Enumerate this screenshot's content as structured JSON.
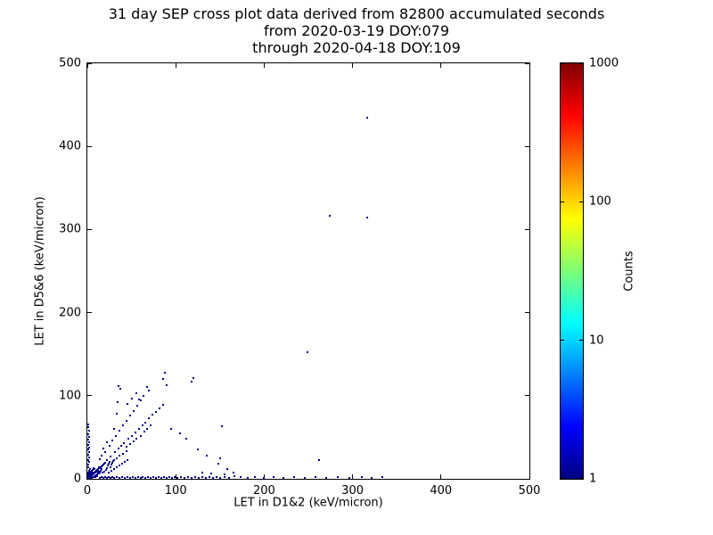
{
  "chart_data": {
    "type": "scatter",
    "title_lines": [
      "31 day SEP cross plot data derived from 82800 accumulated seconds",
      "from 2020-03-19 DOY:079",
      "through 2020-04-18 DOY:109"
    ],
    "xlabel": "LET in D1&2 (keV/micron)",
    "ylabel": "LET in D5&6 (keV/micron)",
    "xlim": [
      0,
      500
    ],
    "ylim": [
      0,
      500
    ],
    "x_ticks": [
      0,
      100,
      200,
      300,
      400,
      500
    ],
    "y_ticks": [
      0,
      100,
      200,
      300,
      400,
      500
    ],
    "grid": false,
    "point_color": "#000089",
    "colorbar": {
      "label": "Counts",
      "scale": "log",
      "min": 1,
      "max": 1000,
      "ticks": [
        1,
        10,
        100,
        1000
      ],
      "colormap": "jet"
    },
    "points": [
      [
        1,
        1
      ],
      [
        1,
        2
      ],
      [
        2,
        1
      ],
      [
        2,
        2
      ],
      [
        2,
        3
      ],
      [
        3,
        2
      ],
      [
        3,
        3
      ],
      [
        3,
        5
      ],
      [
        4,
        3
      ],
      [
        4,
        4
      ],
      [
        4,
        6
      ],
      [
        5,
        4
      ],
      [
        5,
        5
      ],
      [
        5,
        7
      ],
      [
        6,
        5
      ],
      [
        6,
        6
      ],
      [
        6,
        8
      ],
      [
        7,
        6
      ],
      [
        7,
        7
      ],
      [
        8,
        7
      ],
      [
        8,
        8
      ],
      [
        9,
        8
      ],
      [
        9,
        9
      ],
      [
        10,
        9
      ],
      [
        10,
        10
      ],
      [
        11,
        10
      ],
      [
        11,
        11
      ],
      [
        12,
        11
      ],
      [
        12,
        12
      ],
      [
        1,
        3
      ],
      [
        2,
        5
      ],
      [
        3,
        7
      ],
      [
        4,
        9
      ],
      [
        5,
        10
      ],
      [
        6,
        11
      ],
      [
        2,
        7
      ],
      [
        1,
        5
      ],
      [
        1,
        8
      ],
      [
        2,
        10
      ],
      [
        3,
        12
      ],
      [
        4,
        1
      ],
      [
        6,
        2
      ],
      [
        8,
        3
      ],
      [
        9,
        4
      ],
      [
        11,
        5
      ],
      [
        12,
        7
      ],
      [
        13,
        6
      ],
      [
        7,
        2
      ],
      [
        5,
        1
      ],
      [
        3,
        1
      ],
      [
        9,
        2
      ],
      [
        11,
        3
      ],
      [
        13,
        9
      ],
      [
        14,
        8
      ],
      [
        10,
        4
      ],
      [
        8,
        12
      ],
      [
        7,
        13
      ],
      [
        14,
        13
      ],
      [
        15,
        14
      ],
      [
        16,
        12
      ],
      [
        13,
        14
      ],
      [
        15,
        10
      ],
      [
        16,
        15
      ],
      [
        17,
        16
      ],
      [
        18,
        17
      ],
      [
        19,
        18
      ],
      [
        20,
        19
      ],
      [
        17,
        7
      ],
      [
        19,
        9
      ],
      [
        21,
        11
      ],
      [
        22,
        13
      ],
      [
        23,
        16
      ],
      [
        24,
        18
      ],
      [
        25,
        20
      ],
      [
        26,
        14
      ],
      [
        27,
        17
      ],
      [
        28,
        19
      ],
      [
        29,
        21
      ],
      [
        30,
        22
      ],
      [
        24,
        8
      ],
      [
        27,
        10
      ],
      [
        30,
        12
      ],
      [
        33,
        14
      ],
      [
        36,
        16
      ],
      [
        39,
        18
      ],
      [
        42,
        20
      ],
      [
        45,
        22
      ],
      [
        33,
        25
      ],
      [
        36,
        28
      ],
      [
        40,
        30
      ],
      [
        44,
        33
      ],
      [
        22,
        23
      ],
      [
        26,
        27
      ],
      [
        31,
        32
      ],
      [
        35,
        36
      ],
      [
        38,
        40
      ],
      [
        41,
        43
      ],
      [
        46,
        48
      ],
      [
        50,
        52
      ],
      [
        54,
        56
      ],
      [
        58,
        60
      ],
      [
        62,
        64
      ],
      [
        66,
        68
      ],
      [
        70,
        73
      ],
      [
        74,
        77
      ],
      [
        78,
        81
      ],
      [
        82,
        85
      ],
      [
        86,
        89
      ],
      [
        48,
        42
      ],
      [
        52,
        45
      ],
      [
        44,
        39
      ],
      [
        55,
        48
      ],
      [
        60,
        52
      ],
      [
        65,
        57
      ],
      [
        68,
        60
      ],
      [
        72,
        64
      ],
      [
        20,
        32
      ],
      [
        25,
        40
      ],
      [
        28,
        46
      ],
      [
        32,
        52
      ],
      [
        36,
        58
      ],
      [
        40,
        64
      ],
      [
        44,
        70
      ],
      [
        48,
        76
      ],
      [
        52,
        82
      ],
      [
        56,
        88
      ],
      [
        60,
        94
      ],
      [
        64,
        100
      ],
      [
        58,
        96
      ],
      [
        30,
        60
      ],
      [
        22,
        44
      ],
      [
        18,
        36
      ],
      [
        16,
        28
      ],
      [
        14,
        24
      ],
      [
        45,
        90
      ],
      [
        50,
        97
      ],
      [
        55,
        103
      ],
      [
        33,
        78
      ],
      [
        34,
        92
      ],
      [
        35,
        112
      ],
      [
        37,
        108
      ],
      [
        68,
        110
      ],
      [
        70,
        106
      ],
      [
        88,
        128
      ],
      [
        90,
        113
      ],
      [
        86,
        120
      ],
      [
        120,
        121
      ],
      [
        118,
        117
      ],
      [
        1,
        14
      ],
      [
        1,
        17
      ],
      [
        2,
        20
      ],
      [
        1,
        23
      ],
      [
        2,
        26
      ],
      [
        1,
        29
      ],
      [
        2,
        32
      ],
      [
        1,
        35
      ],
      [
        2,
        38
      ],
      [
        1,
        41
      ],
      [
        2,
        44
      ],
      [
        1,
        47
      ],
      [
        2,
        50
      ],
      [
        1,
        54
      ],
      [
        2,
        58
      ],
      [
        1,
        62
      ],
      [
        1,
        65
      ],
      [
        14,
        1
      ],
      [
        16,
        2
      ],
      [
        18,
        1
      ],
      [
        20,
        2
      ],
      [
        22,
        1
      ],
      [
        24,
        2
      ],
      [
        26,
        1
      ],
      [
        28,
        2
      ],
      [
        30,
        1
      ],
      [
        33,
        2
      ],
      [
        36,
        1
      ],
      [
        39,
        2
      ],
      [
        42,
        1
      ],
      [
        45,
        2
      ],
      [
        48,
        1
      ],
      [
        51,
        2
      ],
      [
        54,
        1
      ],
      [
        57,
        2
      ],
      [
        60,
        1
      ],
      [
        63,
        2
      ],
      [
        66,
        1
      ],
      [
        69,
        2
      ],
      [
        72,
        1
      ],
      [
        75,
        2
      ],
      [
        78,
        1
      ],
      [
        81,
        2
      ],
      [
        84,
        1
      ],
      [
        87,
        2
      ],
      [
        90,
        1
      ],
      [
        93,
        2
      ],
      [
        96,
        1
      ],
      [
        99,
        2
      ],
      [
        102,
        1
      ],
      [
        106,
        2
      ],
      [
        110,
        1
      ],
      [
        114,
        2
      ],
      [
        118,
        1
      ],
      [
        122,
        2
      ],
      [
        126,
        1
      ],
      [
        130,
        2
      ],
      [
        134,
        1
      ],
      [
        138,
        2
      ],
      [
        142,
        1
      ],
      [
        146,
        2
      ],
      [
        150,
        1
      ],
      [
        155,
        2
      ],
      [
        160,
        1
      ],
      [
        166,
        3
      ],
      [
        173,
        2
      ],
      [
        181,
        1
      ],
      [
        190,
        2
      ],
      [
        200,
        1
      ],
      [
        211,
        2
      ],
      [
        222,
        1
      ],
      [
        234,
        2
      ],
      [
        246,
        1
      ],
      [
        258,
        2
      ],
      [
        270,
        1
      ],
      [
        283,
        2
      ],
      [
        296,
        1
      ],
      [
        310,
        2
      ],
      [
        322,
        1
      ],
      [
        334,
        2
      ],
      [
        95,
        60
      ],
      [
        105,
        55
      ],
      [
        112,
        48
      ],
      [
        125,
        35
      ],
      [
        135,
        28
      ],
      [
        148,
        18
      ],
      [
        158,
        12
      ],
      [
        130,
        8
      ],
      [
        140,
        6
      ],
      [
        155,
        5
      ],
      [
        165,
        8
      ],
      [
        150,
        25
      ],
      [
        152,
        63
      ],
      [
        262,
        23
      ],
      [
        249,
        152
      ],
      [
        274,
        316
      ],
      [
        317,
        314
      ],
      [
        317,
        435
      ]
    ]
  }
}
